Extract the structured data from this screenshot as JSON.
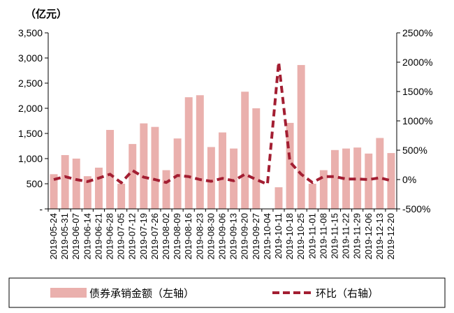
{
  "chart_data": {
    "type": "bar",
    "unit_label": "（亿元）",
    "categories": [
      "2019-05-24",
      "2019-05-31",
      "2019-06-07",
      "2019-06-14",
      "2019-06-21",
      "2019-06-28",
      "2019-07-05",
      "2019-07-12",
      "2019-07-19",
      "2019-07-26",
      "2019-08-02",
      "2019-08-09",
      "2019-08-16",
      "2019-08-23",
      "2019-08-30",
      "2019-09-06",
      "2019-09-13",
      "2019-09-20",
      "2019-09-27",
      "2019-10-04",
      "2019-10-11",
      "2019-10-18",
      "2019-10-25",
      "2019-11-01",
      "2019-11-08",
      "2019-11-15",
      "2019-11-22",
      "2019-11-29",
      "2019-12-06",
      "2019-12-13",
      "2019-12-20"
    ],
    "series": [
      {
        "name": "债券承销金额（左轴）",
        "axis": "left",
        "type": "bar",
        "color": "#eab0ad",
        "values": [
          690,
          1070,
          1000,
          650,
          820,
          1570,
          500,
          1290,
          1700,
          1630,
          770,
          1400,
          2220,
          2260,
          1230,
          1520,
          1200,
          2330,
          2000,
          0,
          430,
          1710,
          2860,
          500,
          770,
          1170,
          1200,
          1220,
          1100,
          1410,
          1110
        ]
      },
      {
        "name": "环比（右轴）",
        "axis": "right",
        "type": "line",
        "style": "dashed",
        "color": "#a31e32",
        "values": [
          0,
          50,
          0,
          -35,
          25,
          90,
          -55,
          155,
          40,
          0,
          -50,
          70,
          50,
          0,
          -30,
          20,
          -20,
          90,
          0,
          -80,
          2000,
          300,
          90,
          -50,
          50,
          50,
          10,
          10,
          0,
          30,
          -20
        ]
      }
    ],
    "y_left": {
      "min": 0,
      "max": 3500,
      "ticks": [
        "-",
        "500",
        "1,000",
        "1,500",
        "2,000",
        "2,500",
        "3,000",
        "3,500"
      ]
    },
    "y_right": {
      "min": -500,
      "max": 2500,
      "ticks": [
        "-500%",
        "0%",
        "500%",
        "1000%",
        "1500%",
        "2000%",
        "2500%"
      ]
    },
    "grid": false,
    "legend_position": "bottom"
  }
}
